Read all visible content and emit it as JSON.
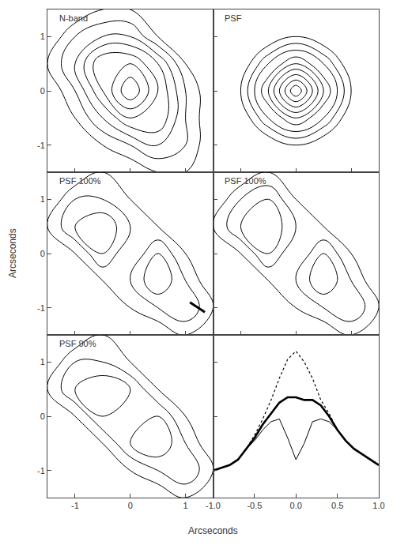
{
  "chart_data": [
    {
      "type": "contour",
      "title": "N-band",
      "x": [
        -1.5,
        -1,
        -0.5,
        0,
        0.5,
        1,
        1.5
      ],
      "y": [
        -1.5,
        -1,
        -0.5,
        0,
        0.5,
        1,
        1.5
      ],
      "z": [
        [
          0,
          0,
          0,
          0,
          1,
          1,
          0
        ],
        [
          0,
          0,
          1,
          2,
          3,
          2,
          0
        ],
        [
          0,
          1,
          3,
          5,
          5,
          2,
          0
        ],
        [
          0,
          2,
          5,
          8,
          5,
          2,
          0
        ],
        [
          1,
          3,
          6,
          6,
          4,
          1,
          0
        ],
        [
          0,
          2,
          3,
          3,
          1,
          0,
          0
        ],
        [
          0,
          0,
          1,
          1,
          0,
          0,
          0
        ]
      ],
      "levels": [
        1,
        2,
        3,
        4,
        5,
        6,
        7
      ],
      "xlim": [
        -1.5,
        1.5
      ],
      "ylim": [
        -1.5,
        1.5
      ],
      "xticks": [
        -1,
        0,
        1
      ],
      "yticks": [
        -1,
        0,
        1
      ],
      "tick_labels": "y",
      "color": "#000000"
    },
    {
      "type": "contour",
      "title": "PSF",
      "x": [
        -1.5,
        -1,
        -0.5,
        0,
        0.5,
        1,
        1.5
      ],
      "y": [
        -1.5,
        -1,
        -0.5,
        0,
        0.5,
        1,
        1.5
      ],
      "z": [
        [
          0,
          0,
          0,
          0,
          0,
          0,
          0
        ],
        [
          0,
          0,
          0,
          1,
          0,
          0,
          0
        ],
        [
          0,
          0,
          3,
          5,
          3,
          0,
          0
        ],
        [
          0,
          1,
          5,
          10,
          5,
          1,
          0
        ],
        [
          0,
          0,
          3,
          5,
          3,
          0,
          0
        ],
        [
          0,
          0,
          0,
          1,
          0,
          0,
          0
        ],
        [
          0,
          0,
          0,
          0,
          0,
          0,
          0
        ]
      ],
      "levels": [
        1,
        2,
        3,
        4,
        5,
        6,
        7,
        8,
        9
      ],
      "xlim": [
        -1.5,
        1.5
      ],
      "ylim": [
        -1.5,
        1.5
      ],
      "xticks": [
        -1,
        0,
        1
      ],
      "yticks": [
        -1,
        0,
        1
      ],
      "tick_labels": false,
      "color": "#000000"
    },
    {
      "type": "contour",
      "title": "PSF 100%",
      "x": [
        -1.5,
        -1,
        -0.5,
        0,
        0.5,
        1,
        1.5
      ],
      "y": [
        -1.5,
        -1,
        -0.5,
        0,
        0.5,
        1,
        1.5
      ],
      "z": [
        [
          0,
          0,
          0,
          0,
          0,
          1,
          0
        ],
        [
          0,
          0,
          0,
          1,
          2,
          3,
          1
        ],
        [
          0,
          0,
          1,
          2,
          4,
          2,
          0
        ],
        [
          0,
          1,
          3,
          1,
          3,
          1,
          0
        ],
        [
          1,
          3,
          4,
          2,
          1,
          0,
          0
        ],
        [
          0,
          2,
          2,
          1,
          0,
          0,
          0
        ],
        [
          0,
          0,
          1,
          0,
          0,
          0,
          0
        ]
      ],
      "levels": [
        1,
        2,
        3,
        4
      ],
      "xlim": [
        -1.5,
        1.5
      ],
      "ylim": [
        -1.5,
        1.5
      ],
      "xticks": [
        -1,
        0,
        1
      ],
      "yticks": [
        -1,
        0,
        1
      ],
      "tick_labels": "y",
      "color": "#000000"
    },
    {
      "type": "contour",
      "title": "PSF 100%",
      "x": [
        -1.5,
        -1,
        -0.5,
        0,
        0.5,
        1,
        1.5
      ],
      "y": [
        -1.5,
        -1,
        -0.5,
        0,
        0.5,
        1,
        1.5
      ],
      "z": [
        [
          0,
          0,
          0,
          0,
          0,
          1,
          0
        ],
        [
          0,
          0,
          0,
          1,
          2,
          3,
          1
        ],
        [
          0,
          0,
          1,
          2,
          4,
          2,
          0
        ],
        [
          0,
          1,
          3,
          1,
          3,
          1,
          0
        ],
        [
          1,
          3,
          4,
          2,
          1,
          0,
          0
        ],
        [
          0,
          2,
          3,
          1,
          0,
          0,
          0
        ],
        [
          0,
          0,
          1,
          0,
          0,
          0,
          0
        ]
      ],
      "levels": [
        1,
        2,
        3,
        4
      ],
      "xlim": [
        -1.5,
        1.5
      ],
      "ylim": [
        -1.5,
        1.5
      ],
      "xticks": [
        -1,
        0,
        1
      ],
      "yticks": [
        -1,
        0,
        1
      ],
      "tick_labels": false,
      "color": "#000000"
    },
    {
      "type": "contour",
      "title": "PSF 90%",
      "x": [
        -1.5,
        -1,
        -0.5,
        0,
        0.5,
        1,
        1.5
      ],
      "y": [
        -1.5,
        -1,
        -0.5,
        0,
        0.5,
        1,
        1.5
      ],
      "z": [
        [
          0,
          0,
          0,
          0,
          0,
          1,
          0
        ],
        [
          0,
          0,
          0,
          1,
          2,
          3,
          1
        ],
        [
          0,
          0,
          1,
          3,
          4,
          2,
          0
        ],
        [
          0,
          1,
          3,
          3,
          3,
          1,
          0
        ],
        [
          1,
          3,
          4,
          3,
          1,
          0,
          0
        ],
        [
          0,
          2,
          2,
          1,
          0,
          0,
          0
        ],
        [
          0,
          0,
          1,
          0,
          0,
          0,
          0
        ]
      ],
      "levels": [
        1,
        2,
        3,
        4
      ],
      "xlim": [
        -1.5,
        1.5
      ],
      "ylim": [
        -1.5,
        1.5
      ],
      "xticks": [
        -1,
        0,
        1
      ],
      "yticks": [
        -1,
        0,
        1
      ],
      "tick_labels": true,
      "color": "#000000"
    },
    {
      "type": "line",
      "x": [
        -1.0,
        -0.9,
        -0.8,
        -0.7,
        -0.6,
        -0.5,
        -0.4,
        -0.3,
        -0.2,
        -0.1,
        0.0,
        0.1,
        0.2,
        0.3,
        0.4,
        0.5,
        0.6,
        0.7,
        0.8,
        0.9,
        1.0
      ],
      "series": [
        {
          "color": "#000000",
          "line_style": "bold",
          "values": [
            -1.0,
            -0.95,
            -0.9,
            -0.8,
            -0.6,
            -0.4,
            -0.15,
            0.05,
            0.25,
            0.35,
            0.35,
            0.3,
            0.3,
            0.2,
            0.0,
            -0.25,
            -0.45,
            -0.6,
            -0.7,
            -0.8,
            -0.9
          ]
        },
        {
          "color": "#000000",
          "line_style": "dotted",
          "values": [
            -1.0,
            -0.95,
            -0.9,
            -0.8,
            -0.6,
            -0.35,
            -0.05,
            0.3,
            0.7,
            1.05,
            1.2,
            1.0,
            0.7,
            0.3,
            0.05,
            -0.25,
            -0.45,
            -0.6,
            -0.7,
            -0.8,
            -0.9
          ]
        },
        {
          "color": "#000000",
          "line_style": "solid",
          "values": [
            -1.0,
            -0.95,
            -0.9,
            -0.8,
            -0.6,
            -0.45,
            -0.25,
            -0.1,
            -0.05,
            -0.4,
            -0.8,
            -0.5,
            -0.1,
            -0.05,
            -0.1,
            -0.25,
            -0.45,
            -0.6,
            -0.7,
            -0.8,
            -0.9
          ]
        }
      ],
      "xlim": [
        -1.0,
        1.0
      ],
      "ylim": [
        -1.5,
        1.5
      ],
      "xticks": [
        {
          "value": -1.0,
          "label": "-1.0"
        },
        {
          "value": -0.5,
          "label": "-0.5"
        },
        {
          "value": 0.0,
          "label": "0.0"
        },
        {
          "value": 0.5,
          "label": "0.5"
        },
        {
          "value": 1.0,
          "label": "1.0"
        }
      ],
      "yticks": [
        -1,
        0,
        1
      ],
      "tick_labels": "x"
    }
  ],
  "xlabel": "Arcseconds",
  "ylabel": "Arcseconds"
}
